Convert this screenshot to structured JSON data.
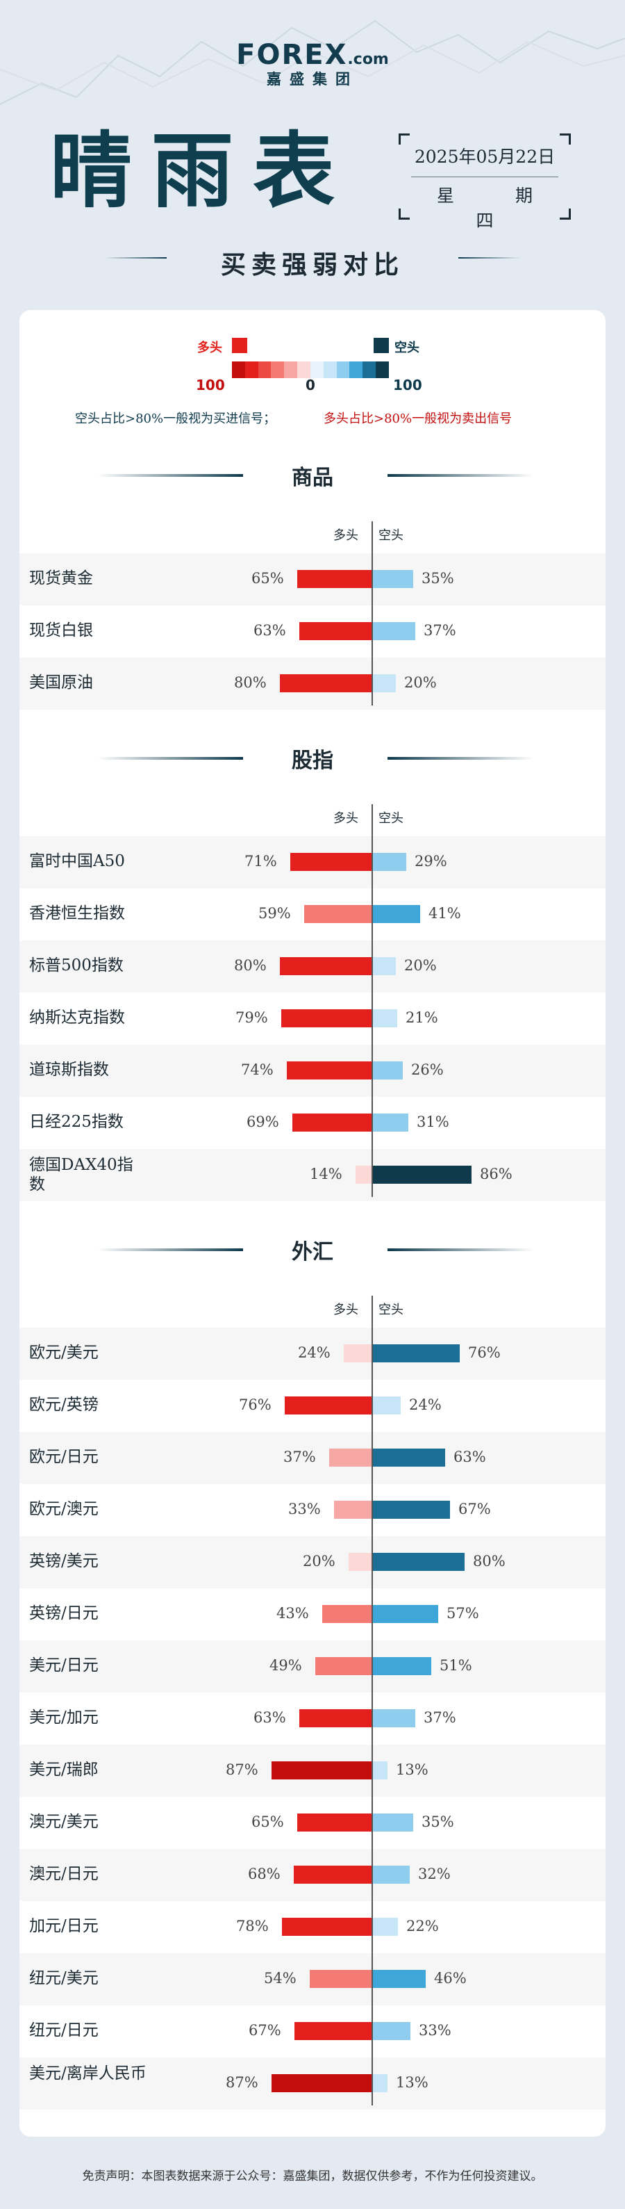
{
  "brand": {
    "logo": "FOREX",
    "logo_suffix": ".com",
    "company": "嘉盛集团"
  },
  "title": "晴雨表",
  "date": "2025年05月22日",
  "weekday": "星 期 四",
  "subtitle": "买卖强弱对比",
  "legend": {
    "long_label": "多头",
    "short_label": "空头",
    "left_num": "100",
    "mid_num": "0",
    "right_num": "100",
    "note_short": "空头占比>80%一般视为买进信号；",
    "note_long": "多头占比>80%一般视为卖出信号",
    "colors": {
      "long": "#e3201c",
      "short": "#0e3a4c"
    }
  },
  "col_long": "多头",
  "col_short": "空头",
  "footer": "免责声明：本图表数据来源于公众号：嘉盛集团，数据仅供参考，不作为任何投资建议。",
  "chart_data": {
    "type": "bar",
    "unit": "%",
    "sections": [
      {
        "name": "商品",
        "rows": [
          {
            "label": "现货黄金",
            "long": 65,
            "short": 35
          },
          {
            "label": "现货白银",
            "long": 63,
            "short": 37
          },
          {
            "label": "美国原油",
            "long": 80,
            "short": 20
          }
        ]
      },
      {
        "name": "股指",
        "rows": [
          {
            "label": "富时中国A50",
            "long": 71,
            "short": 29
          },
          {
            "label": "香港恒生指数",
            "long": 59,
            "short": 41
          },
          {
            "label": "标普500指数",
            "long": 80,
            "short": 20
          },
          {
            "label": "纳斯达克指数",
            "long": 79,
            "short": 21
          },
          {
            "label": "道琼斯指数",
            "long": 74,
            "short": 26
          },
          {
            "label": "日经225指数",
            "long": 69,
            "short": 31
          },
          {
            "label": "德国DAX40指数",
            "long": 14,
            "short": 86
          }
        ]
      },
      {
        "name": "外汇",
        "rows": [
          {
            "label": "欧元/美元",
            "long": 24,
            "short": 76
          },
          {
            "label": "欧元/英镑",
            "long": 76,
            "short": 24
          },
          {
            "label": "欧元/日元",
            "long": 37,
            "short": 63
          },
          {
            "label": "欧元/澳元",
            "long": 33,
            "short": 67
          },
          {
            "label": "英镑/美元",
            "long": 20,
            "short": 80
          },
          {
            "label": "英镑/日元",
            "long": 43,
            "short": 57
          },
          {
            "label": "美元/日元",
            "long": 49,
            "short": 51
          },
          {
            "label": "美元/加元",
            "long": 63,
            "short": 37
          },
          {
            "label": "美元/瑞郎",
            "long": 87,
            "short": 13
          },
          {
            "label": "澳元/美元",
            "long": 65,
            "short": 35
          },
          {
            "label": "澳元/日元",
            "long": 68,
            "short": 32
          },
          {
            "label": "加元/日元",
            "long": 78,
            "short": 22
          },
          {
            "label": "纽元/美元",
            "long": 54,
            "short": 46
          },
          {
            "label": "纽元/日元",
            "long": 67,
            "short": 33
          },
          {
            "label": "美元/离岸人民币",
            "long": 87,
            "short": 13
          }
        ]
      }
    ]
  }
}
